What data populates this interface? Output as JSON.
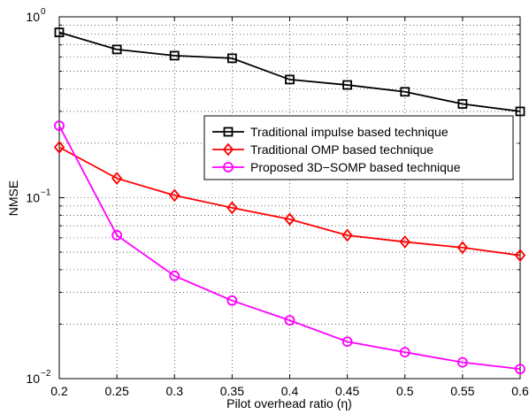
{
  "chart_data": {
    "type": "line",
    "title": "",
    "xlabel": "Pilot overhead ratio (η)",
    "ylabel": "NMSE",
    "x": [
      0.2,
      0.25,
      0.3,
      0.35,
      0.4,
      0.45,
      0.5,
      0.55,
      0.6
    ],
    "x_tick_labels": [
      "0.2",
      "0.25",
      "0.3",
      "0.35",
      "0.4",
      "0.45",
      "0.5",
      "0.55",
      "0.6"
    ],
    "xlim": [
      0.2,
      0.6
    ],
    "ylim": [
      0.01,
      1
    ],
    "yscale": "log",
    "y_ticks": [
      {
        "value": 1,
        "base": "10",
        "exp": "0"
      },
      {
        "value": 0.1,
        "base": "10",
        "exp": "−1"
      },
      {
        "value": 0.01,
        "base": "10",
        "exp": "−2"
      }
    ],
    "grid": true,
    "legend_position": "upper-right",
    "series": [
      {
        "name": "Traditional impulse based technique",
        "color": "#000000",
        "marker": "square",
        "values": [
          0.82,
          0.66,
          0.61,
          0.59,
          0.45,
          0.42,
          0.385,
          0.33,
          0.3
        ]
      },
      {
        "name": "Traditional OMP based technique",
        "color": "#ff0000",
        "marker": "diamond",
        "values": [
          0.19,
          0.128,
          0.103,
          0.088,
          0.076,
          0.062,
          0.057,
          0.053,
          0.048
        ]
      },
      {
        "name": "Proposed 3D−SOMP based technique",
        "color": "#ff00ff",
        "marker": "circle",
        "values": [
          0.25,
          0.062,
          0.037,
          0.027,
          0.021,
          0.016,
          0.014,
          0.0123,
          0.0113
        ]
      }
    ]
  }
}
